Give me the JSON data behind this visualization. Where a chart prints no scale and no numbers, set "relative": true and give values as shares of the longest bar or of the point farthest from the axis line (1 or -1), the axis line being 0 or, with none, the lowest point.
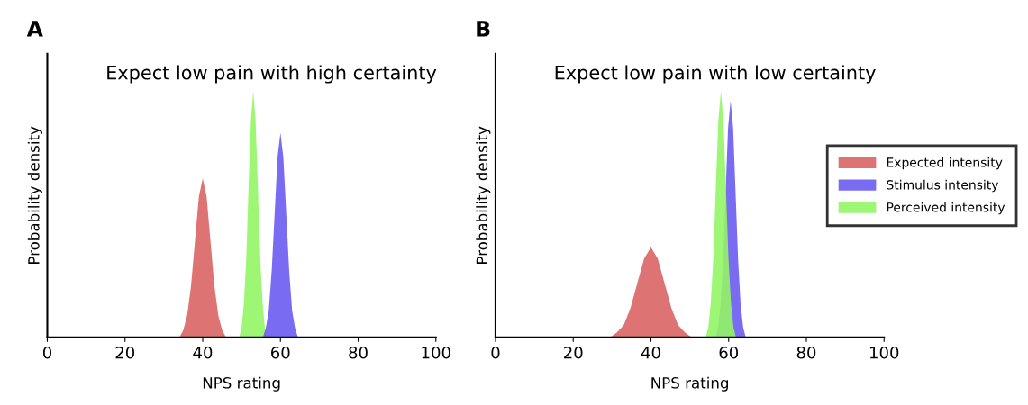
{
  "chart_data": [
    {
      "type": "area",
      "title": "Expect low pain with high certainty",
      "xlabel": "NPS rating",
      "ylabel": "Probability density",
      "annotations": [
        "A"
      ],
      "relative": true,
      "xlim": [
        0,
        100
      ],
      "xticks": [
        0,
        20,
        40,
        60,
        80,
        100
      ],
      "grid": false,
      "legend": false,
      "series": [
        {
          "color": "#d96464",
          "x": [
            34,
            35,
            36,
            37,
            38,
            39,
            40,
            41,
            42,
            43,
            44,
            45,
            46
          ],
          "values": [
            0,
            0.03,
            0.09,
            0.21,
            0.39,
            0.57,
            0.645,
            0.57,
            0.39,
            0.21,
            0.09,
            0.03,
            0
          ]
        },
        {
          "color": "#94f566",
          "x": [
            49.4,
            50,
            50.6,
            51.2,
            51.8,
            52.4,
            53,
            53.6,
            54.2,
            54.8,
            55.4,
            56,
            56.6
          ],
          "values": [
            0,
            0.04,
            0.14,
            0.32,
            0.61,
            0.88,
            1,
            0.88,
            0.61,
            0.32,
            0.14,
            0.04,
            0
          ]
        },
        {
          "color": "#6a5cf2",
          "x": [
            55.5,
            56.25,
            57,
            57.75,
            58.5,
            59.25,
            60,
            60.75,
            61.5,
            62.25,
            63,
            63.75,
            64.5
          ],
          "values": [
            0,
            0.04,
            0.11,
            0.27,
            0.5,
            0.73,
            0.83,
            0.73,
            0.5,
            0.27,
            0.11,
            0.04,
            0
          ]
        }
      ]
    },
    {
      "type": "area",
      "title": "Expect low pain with low certainty",
      "xlabel": "NPS rating",
      "ylabel": "Probability density",
      "annotations": [
        "B"
      ],
      "relative": true,
      "xlim": [
        0,
        100
      ],
      "xticks": [
        0,
        20,
        40,
        60,
        80,
        100
      ],
      "grid": false,
      "legend": "right",
      "series": [
        {
          "name": "Expected intensity",
          "color": "#d96464",
          "x": [
            29.5,
            31.25,
            33,
            34.75,
            36.5,
            38.25,
            40,
            41.75,
            43.5,
            45.25,
            47,
            48.75,
            50.5
          ],
          "values": [
            0,
            0.02,
            0.05,
            0.12,
            0.22,
            0.32,
            0.365,
            0.32,
            0.22,
            0.12,
            0.05,
            0.02,
            0
          ]
        },
        {
          "name": "Stimulus intensity",
          "color": "#6a5cf2",
          "x": [
            56.6,
            57.25,
            57.9,
            58.55,
            59.2,
            59.85,
            60.5,
            61.15,
            61.8,
            62.45,
            63.1,
            63.75,
            64.4
          ],
          "values": [
            0,
            0.04,
            0.13,
            0.31,
            0.58,
            0.85,
            0.96,
            0.85,
            0.58,
            0.31,
            0.13,
            0.04,
            0
          ]
        },
        {
          "name": "Perceived intensity",
          "color": "#94f566",
          "x": [
            54.1,
            54.75,
            55.4,
            56.05,
            56.7,
            57.35,
            58,
            58.65,
            59.3,
            59.95,
            60.6,
            61.25,
            61.9
          ],
          "values": [
            0,
            0.04,
            0.14,
            0.32,
            0.61,
            0.88,
            1,
            0.88,
            0.61,
            0.32,
            0.14,
            0.04,
            0
          ]
        }
      ]
    }
  ]
}
